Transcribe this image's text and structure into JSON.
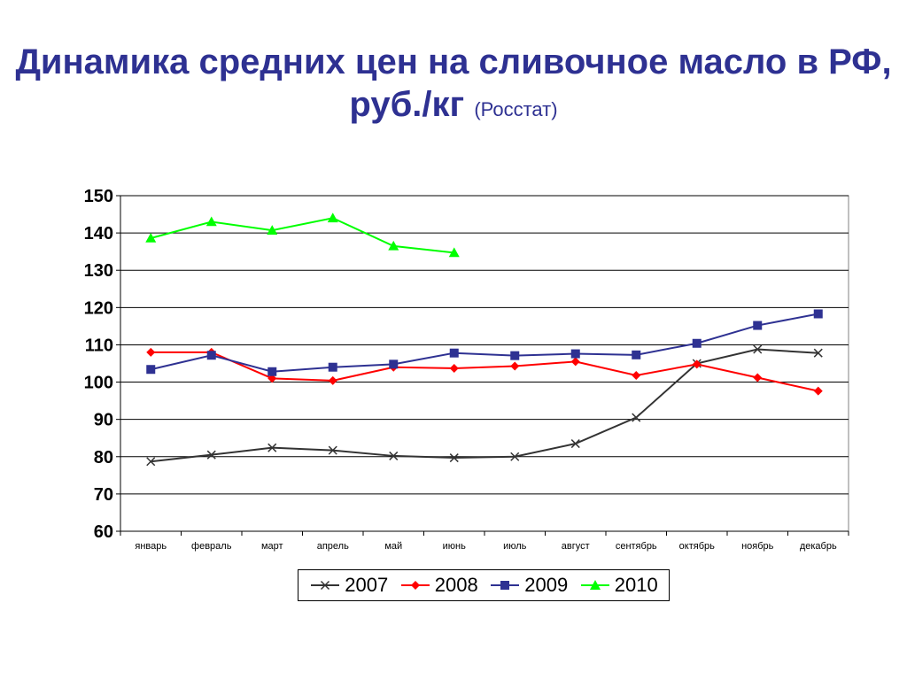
{
  "title": {
    "main": "Динамика средних цен на сливочное масло в РФ,",
    "unit": "руб./кг",
    "source": "(Росстат)"
  },
  "chart_data": {
    "type": "line",
    "categories": [
      "январь",
      "февраль",
      "март",
      "апрель",
      "май",
      "июнь",
      "июль",
      "август",
      "сентябрь",
      "октябрь",
      "ноябрь",
      "декабрь"
    ],
    "ylim": [
      60,
      150
    ],
    "yticks": [
      60,
      70,
      80,
      90,
      100,
      110,
      120,
      130,
      140,
      150
    ],
    "grid": true,
    "legend_position": "bottom",
    "series": [
      {
        "name": "2007",
        "color": "#333333",
        "marker": "x",
        "values": [
          78.7,
          80.5,
          82.4,
          81.7,
          80.2,
          79.7,
          80.0,
          83.5,
          90.5,
          105.0,
          108.8,
          107.8
        ]
      },
      {
        "name": "2008",
        "color": "#ff0000",
        "marker": "diamond",
        "values": [
          108.0,
          108.0,
          101.0,
          100.4,
          104.0,
          103.7,
          104.3,
          105.5,
          101.8,
          104.8,
          101.2,
          97.6
        ]
      },
      {
        "name": "2009",
        "color": "#2e3192",
        "marker": "square",
        "values": [
          103.4,
          107.2,
          102.8,
          104.0,
          104.8,
          107.8,
          107.1,
          107.6,
          107.3,
          110.4,
          115.2,
          118.3
        ]
      },
      {
        "name": "2010",
        "color": "#00ff00",
        "marker": "triangle",
        "values": [
          138.6,
          143.0,
          140.7,
          144.0,
          136.5,
          134.7,
          null,
          null,
          null,
          null,
          null,
          null
        ]
      }
    ]
  }
}
